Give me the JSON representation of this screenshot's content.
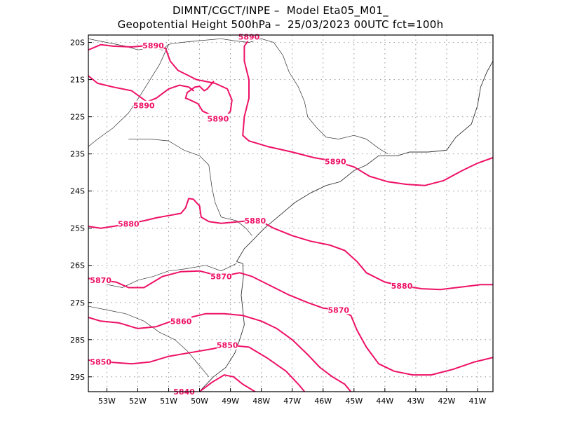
{
  "header": {
    "line1": "DIMNT/CGCT/INPE –  Model Eta05_M01_",
    "line2": "Geopotential Height 500hPa –  25/03/2023 00UTC fct=100h"
  },
  "colors": {
    "contour": "#ee1166",
    "coast": "#333333",
    "grid": "#999999",
    "frame": "#000000"
  },
  "chart_data": {
    "type": "contour-map",
    "variable": "Geopotential Height 500hPa",
    "lon_range": [
      -53.6,
      -40.5
    ],
    "lat_range": [
      -29.4,
      -19.8
    ],
    "y_ticks": [
      "20S",
      "21S",
      "22S",
      "23S",
      "24S",
      "25S",
      "26S",
      "27S",
      "28S",
      "29S"
    ],
    "x_ticks": [
      "53W",
      "52W",
      "51W",
      "50W",
      "49W",
      "48W",
      "47W",
      "46W",
      "45W",
      "44W",
      "43W",
      "42W",
      "41W"
    ],
    "grid": "dotted",
    "contours": [
      {
        "level": "5890",
        "labels": [
          [
            -51.5,
            -20.08
          ],
          [
            -48.4,
            -19.85
          ],
          [
            -51.8,
            -21.7
          ],
          [
            -49.4,
            -22.05
          ],
          [
            -45.6,
            -23.2
          ]
        ],
        "segments": [
          [
            [
              -53.6,
              -20.2
            ],
            [
              -53.2,
              -20.06
            ],
            [
              -52.8,
              -20.1
            ],
            [
              -52.2,
              -20.12
            ],
            [
              -51.6,
              -20.08
            ],
            [
              -51.1,
              -20.16
            ],
            [
              -50.95,
              -20.5
            ],
            [
              -50.7,
              -20.75
            ],
            [
              -50.1,
              -21.0
            ],
            [
              -49.5,
              -21.1
            ],
            [
              -49.1,
              -21.25
            ],
            [
              -48.95,
              -21.55
            ],
            [
              -49.0,
              -21.85
            ],
            [
              -49.2,
              -22.05
            ],
            [
              -49.5,
              -22.0
            ],
            [
              -49.9,
              -21.85
            ],
            [
              -50.05,
              -21.65
            ],
            [
              -50.3,
              -21.55
            ],
            [
              -50.45,
              -21.5
            ],
            [
              -50.4,
              -21.35
            ],
            [
              -50.15,
              -21.2
            ],
            [
              -50.0,
              -21.18
            ],
            [
              -49.85,
              -21.3
            ],
            [
              -49.75,
              -21.25
            ],
            [
              -49.55,
              -21.05
            ]
          ],
          [
            [
              -53.6,
              -20.9
            ],
            [
              -53.3,
              -21.1
            ],
            [
              -52.8,
              -21.2
            ],
            [
              -52.2,
              -21.3
            ],
            [
              -51.7,
              -21.6
            ],
            [
              -51.4,
              -21.5
            ],
            [
              -51.0,
              -21.25
            ],
            [
              -50.65,
              -21.15
            ],
            [
              -50.35,
              -21.2
            ],
            [
              -50.2,
              -21.3
            ]
          ],
          [
            [
              -48.3,
              -19.8
            ],
            [
              -48.55,
              -20.1
            ],
            [
              -48.55,
              -20.5
            ],
            [
              -48.4,
              -21.0
            ],
            [
              -48.4,
              -21.5
            ],
            [
              -48.55,
              -22.0
            ],
            [
              -48.6,
              -22.5
            ],
            [
              -48.4,
              -22.65
            ],
            [
              -47.8,
              -22.8
            ],
            [
              -47.0,
              -22.95
            ],
            [
              -46.3,
              -23.1
            ],
            [
              -45.6,
              -23.2
            ],
            [
              -45.0,
              -23.35
            ],
            [
              -44.5,
              -23.6
            ],
            [
              -43.9,
              -23.75
            ],
            [
              -43.3,
              -23.82
            ],
            [
              -42.7,
              -23.85
            ],
            [
              -42.1,
              -23.72
            ],
            [
              -41.5,
              -23.45
            ],
            [
              -41.0,
              -23.25
            ],
            [
              -40.5,
              -23.1
            ]
          ]
        ]
      },
      {
        "level": "5880",
        "labels": [
          [
            -52.3,
            -24.88
          ],
          [
            -48.2,
            -24.8
          ],
          [
            -43.45,
            -26.55
          ]
        ],
        "segments": [
          [
            [
              -53.6,
              -24.95
            ],
            [
              -53.2,
              -25.0
            ],
            [
              -52.8,
              -24.95
            ],
            [
              -52.3,
              -24.88
            ],
            [
              -51.8,
              -24.8
            ],
            [
              -51.4,
              -24.72
            ],
            [
              -51.0,
              -24.66
            ],
            [
              -50.6,
              -24.6
            ],
            [
              -50.45,
              -24.45
            ],
            [
              -50.35,
              -24.2
            ],
            [
              -50.2,
              -24.22
            ],
            [
              -50.0,
              -24.4
            ],
            [
              -49.95,
              -24.7
            ],
            [
              -49.7,
              -24.82
            ],
            [
              -49.3,
              -24.87
            ],
            [
              -48.8,
              -24.83
            ],
            [
              -48.4,
              -24.8
            ],
            [
              -48.0,
              -24.82
            ],
            [
              -47.6,
              -25.0
            ],
            [
              -47.0,
              -25.2
            ],
            [
              -46.4,
              -25.35
            ],
            [
              -45.8,
              -25.45
            ],
            [
              -45.3,
              -25.6
            ],
            [
              -44.9,
              -25.9
            ],
            [
              -44.6,
              -26.2
            ],
            [
              -44.0,
              -26.45
            ],
            [
              -43.45,
              -26.55
            ],
            [
              -42.8,
              -26.63
            ],
            [
              -42.2,
              -26.65
            ],
            [
              -41.5,
              -26.58
            ],
            [
              -40.9,
              -26.52
            ],
            [
              -40.5,
              -26.52
            ]
          ]
        ]
      },
      {
        "level": "5870",
        "labels": [
          [
            -53.2,
            -26.4
          ],
          [
            -49.3,
            -26.3
          ],
          [
            -45.5,
            -27.2
          ]
        ],
        "segments": [
          [
            [
              -53.6,
              -26.35
            ],
            [
              -53.2,
              -26.4
            ],
            [
              -52.7,
              -26.45
            ],
            [
              -52.3,
              -26.6
            ],
            [
              -51.8,
              -26.6
            ],
            [
              -51.2,
              -26.3
            ],
            [
              -50.6,
              -26.17
            ],
            [
              -50.0,
              -26.15
            ],
            [
              -49.3,
              -26.3
            ],
            [
              -48.7,
              -26.2
            ],
            [
              -48.3,
              -26.3
            ],
            [
              -47.7,
              -26.55
            ],
            [
              -47.1,
              -26.8
            ],
            [
              -46.5,
              -27.0
            ],
            [
              -46.0,
              -27.15
            ],
            [
              -45.5,
              -27.2
            ],
            [
              -45.1,
              -27.35
            ],
            [
              -44.9,
              -27.75
            ],
            [
              -44.6,
              -28.2
            ],
            [
              -44.2,
              -28.65
            ],
            [
              -43.7,
              -28.85
            ],
            [
              -43.1,
              -28.95
            ],
            [
              -42.5,
              -28.95
            ],
            [
              -41.8,
              -28.8
            ],
            [
              -41.1,
              -28.6
            ],
            [
              -40.5,
              -28.48
            ]
          ]
        ]
      },
      {
        "level": "5860",
        "labels": [
          [
            -50.6,
            -27.5
          ]
        ],
        "segments": [
          [
            [
              -53.6,
              -27.4
            ],
            [
              -53.2,
              -27.5
            ],
            [
              -52.6,
              -27.55
            ],
            [
              -52.0,
              -27.7
            ],
            [
              -51.4,
              -27.65
            ],
            [
              -50.9,
              -27.5
            ],
            [
              -50.3,
              -27.4
            ],
            [
              -49.8,
              -27.3
            ],
            [
              -49.2,
              -27.3
            ],
            [
              -48.6,
              -27.35
            ],
            [
              -48.0,
              -27.5
            ],
            [
              -47.5,
              -27.7
            ],
            [
              -47.0,
              -28.0
            ],
            [
              -46.5,
              -28.4
            ],
            [
              -46.1,
              -28.75
            ],
            [
              -45.7,
              -29.0
            ],
            [
              -45.3,
              -29.2
            ],
            [
              -45.1,
              -29.4
            ]
          ]
        ]
      },
      {
        "level": "5850",
        "labels": [
          [
            -53.2,
            -28.6
          ],
          [
            -49.1,
            -28.15
          ]
        ],
        "segments": [
          [
            [
              -53.6,
              -28.55
            ],
            [
              -53.0,
              -28.6
            ],
            [
              -52.2,
              -28.65
            ],
            [
              -51.6,
              -28.6
            ],
            [
              -51.0,
              -28.45
            ],
            [
              -50.3,
              -28.35
            ],
            [
              -49.6,
              -28.25
            ],
            [
              -49.0,
              -28.15
            ],
            [
              -48.4,
              -28.2
            ],
            [
              -47.8,
              -28.5
            ],
            [
              -47.2,
              -28.85
            ],
            [
              -46.8,
              -29.2
            ],
            [
              -46.6,
              -29.4
            ]
          ]
        ]
      },
      {
        "level": "5840",
        "labels": [
          [
            -50.5,
            -29.4
          ]
        ],
        "segments": [
          [
            [
              -50.0,
              -29.4
            ],
            [
              -49.6,
              -29.15
            ],
            [
              -49.2,
              -28.95
            ],
            [
              -48.9,
              -29.0
            ],
            [
              -48.6,
              -29.2
            ],
            [
              -48.2,
              -29.4
            ]
          ]
        ]
      }
    ],
    "coastline": [
      [
        [
          -48.8,
          -25.9
        ],
        [
          -48.6,
          -25.95
        ],
        [
          -48.58,
          -26.3
        ],
        [
          -48.65,
          -26.8
        ],
        [
          -48.6,
          -27.2
        ],
        [
          -48.55,
          -27.6
        ],
        [
          -48.7,
          -28.0
        ],
        [
          -48.85,
          -28.35
        ],
        [
          -49.15,
          -28.75
        ],
        [
          -49.55,
          -29.0
        ],
        [
          -49.95,
          -29.35
        ]
      ],
      [
        [
          -48.8,
          -25.9
        ],
        [
          -48.55,
          -25.55
        ],
        [
          -48.25,
          -25.3
        ],
        [
          -47.9,
          -25.0
        ],
        [
          -47.4,
          -24.65
        ],
        [
          -46.9,
          -24.3
        ],
        [
          -46.4,
          -24.05
        ],
        [
          -45.9,
          -23.85
        ],
        [
          -45.45,
          -23.75
        ],
        [
          -45.0,
          -23.45
        ],
        [
          -44.6,
          -23.3
        ],
        [
          -44.2,
          -23.05
        ],
        [
          -43.6,
          -23.05
        ],
        [
          -43.2,
          -22.95
        ],
        [
          -42.6,
          -22.95
        ],
        [
          -42.0,
          -22.9
        ],
        [
          -41.7,
          -22.55
        ],
        [
          -41.2,
          -22.2
        ],
        [
          -41.0,
          -21.7
        ],
        [
          -40.9,
          -21.2
        ],
        [
          -40.7,
          -20.8
        ],
        [
          -40.5,
          -20.5
        ]
      ]
    ],
    "borders": [
      [
        [
          -53.6,
          -19.9
        ],
        [
          -53.3,
          -19.95
        ],
        [
          -53.0,
          -20.0
        ],
        [
          -52.4,
          -20.1
        ],
        [
          -52.0,
          -20.2
        ],
        [
          -51.6,
          -20.15
        ],
        [
          -51.2,
          -20.2
        ],
        [
          -51.0,
          -20.05
        ],
        [
          -50.6,
          -20.0
        ],
        [
          -50.0,
          -19.95
        ],
        [
          -49.3,
          -19.9
        ],
        [
          -48.9,
          -19.95
        ],
        [
          -48.4,
          -20.0
        ],
        [
          -48.0,
          -19.9
        ],
        [
          -47.6,
          -20.0
        ],
        [
          -47.3,
          -20.35
        ],
        [
          -47.1,
          -20.8
        ],
        [
          -46.8,
          -21.2
        ],
        [
          -46.6,
          -21.6
        ],
        [
          -46.5,
          -22.0
        ],
        [
          -46.2,
          -22.3
        ],
        [
          -45.9,
          -22.55
        ],
        [
          -45.5,
          -22.6
        ],
        [
          -45.0,
          -22.5
        ],
        [
          -44.6,
          -22.6
        ],
        [
          -44.2,
          -22.85
        ],
        [
          -43.9,
          -23.0
        ]
      ],
      [
        [
          -51.0,
          -20.05
        ],
        [
          -51.3,
          -20.6
        ],
        [
          -51.6,
          -21.0
        ],
        [
          -51.9,
          -21.4
        ],
        [
          -52.3,
          -21.9
        ],
        [
          -52.8,
          -22.3
        ],
        [
          -53.3,
          -22.6
        ],
        [
          -53.6,
          -22.8
        ]
      ],
      [
        [
          -52.3,
          -22.6
        ],
        [
          -51.6,
          -22.6
        ],
        [
          -51.0,
          -22.65
        ],
        [
          -50.5,
          -22.9
        ],
        [
          -50.0,
          -23.05
        ],
        [
          -49.7,
          -23.3
        ],
        [
          -49.6,
          -23.9
        ],
        [
          -49.5,
          -24.3
        ],
        [
          -49.3,
          -24.7
        ],
        [
          -48.8,
          -24.8
        ],
        [
          -48.5,
          -25.0
        ],
        [
          -48.3,
          -25.2
        ]
      ],
      [
        [
          -53.6,
          -26.35
        ],
        [
          -53.1,
          -26.5
        ],
        [
          -52.5,
          -26.6
        ],
        [
          -52.0,
          -26.4
        ],
        [
          -51.5,
          -26.3
        ],
        [
          -51.0,
          -26.15
        ],
        [
          -50.5,
          -26.1
        ],
        [
          -49.8,
          -26.0
        ],
        [
          -49.3,
          -26.15
        ],
        [
          -48.8,
          -25.95
        ]
      ],
      [
        [
          -53.6,
          -27.1
        ],
        [
          -53.0,
          -27.2
        ],
        [
          -52.4,
          -27.3
        ],
        [
          -51.8,
          -27.5
        ],
        [
          -51.3,
          -27.8
        ],
        [
          -50.8,
          -28.0
        ],
        [
          -50.4,
          -28.3
        ],
        [
          -50.0,
          -28.7
        ],
        [
          -49.7,
          -29.0
        ]
      ]
    ]
  }
}
